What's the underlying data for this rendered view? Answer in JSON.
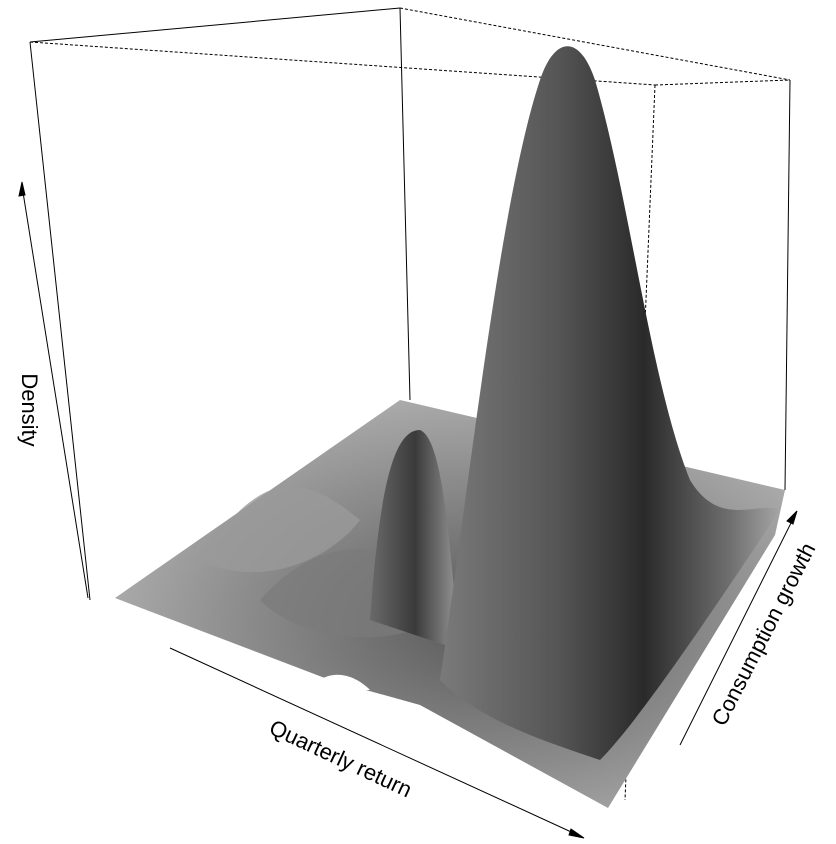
{
  "chart_data": {
    "type": "surface3d",
    "xlabel": "Quarterly return",
    "ylabel": "Consumption growth",
    "zlabel": "Density"
  }
}
